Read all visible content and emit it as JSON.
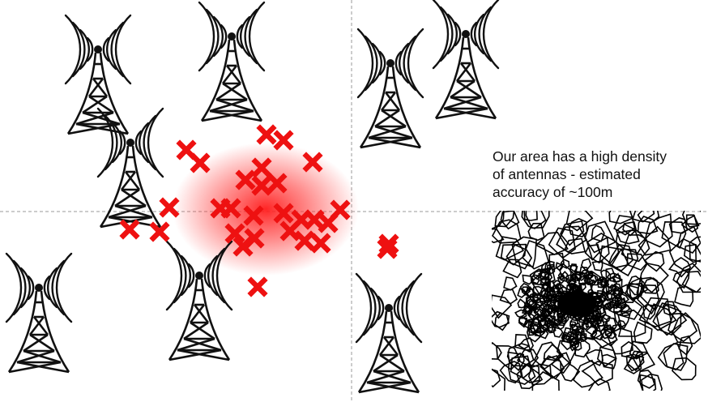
{
  "caption": {
    "line1": "Our area has a high density",
    "line2": "of antennas - estimated",
    "line3": "accuracy of ~100m"
  },
  "colors": {
    "marker": "#ee1111",
    "tower": "#111111",
    "guide": "#9a9a9a",
    "blob": "#ff1a1a"
  },
  "icons": {
    "tower": "cell-tower-icon",
    "marker": "red-x-marker-icon",
    "map": "voronoi-coverage-map"
  }
}
